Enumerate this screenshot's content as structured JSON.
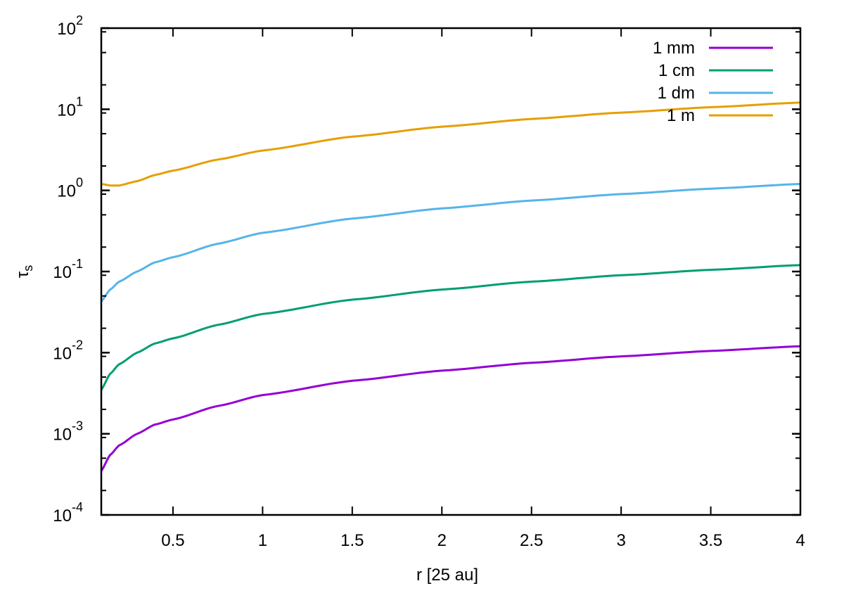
{
  "chart_data": {
    "type": "line",
    "title": "",
    "xlabel": "r [25 au]",
    "ylabel": "τs",
    "ylabel_main": "τ",
    "ylabel_sub": "s",
    "xscale": "linear",
    "yscale": "log",
    "xlim": [
      0.1,
      4
    ],
    "ylim": [
      0.0001,
      100
    ],
    "grid": false,
    "legend_position": "top-right",
    "x_ticks": [
      0.5,
      1,
      1.5,
      2,
      2.5,
      3,
      3.5,
      4
    ],
    "x_tick_labels": [
      "0.5",
      "1",
      "1.5",
      "2",
      "2.5",
      "3",
      "3.5",
      "4"
    ],
    "y_ticks": [
      {
        "base": "10",
        "exp": "2",
        "value": 100
      },
      {
        "base": "10",
        "exp": "1",
        "value": 10
      },
      {
        "base": "10",
        "exp": "0",
        "value": 1
      },
      {
        "base": "10",
        "exp": "-1",
        "value": 0.1
      },
      {
        "base": "10",
        "exp": "-2",
        "value": 0.01
      },
      {
        "base": "10",
        "exp": "-3",
        "value": 0.001
      },
      {
        "base": "10",
        "exp": "-4",
        "value": 0.0001
      }
    ],
    "x": [
      0.1,
      0.15,
      0.2,
      0.3,
      0.4,
      0.5,
      0.75,
      1.0,
      1.5,
      2.0,
      2.5,
      3.0,
      3.5,
      4.0
    ],
    "series": [
      {
        "name": "1 mm",
        "color": "#9400d3",
        "values": [
          0.00035,
          0.00055,
          0.00072,
          0.001,
          0.0013,
          0.0015,
          0.0022,
          0.003,
          0.0045,
          0.006,
          0.0075,
          0.009,
          0.0105,
          0.012
        ]
      },
      {
        "name": "1 cm",
        "color": "#009e73",
        "values": [
          0.0035,
          0.0055,
          0.0072,
          0.01,
          0.013,
          0.015,
          0.022,
          0.03,
          0.045,
          0.06,
          0.075,
          0.09,
          0.105,
          0.12
        ]
      },
      {
        "name": "1 dm",
        "color": "#56b4e9",
        "values": [
          0.043,
          0.06,
          0.075,
          0.1,
          0.13,
          0.15,
          0.22,
          0.3,
          0.45,
          0.6,
          0.75,
          0.9,
          1.05,
          1.2
        ]
      },
      {
        "name": "1 m",
        "color": "#e69f00",
        "values": [
          1.2,
          1.15,
          1.15,
          1.3,
          1.55,
          1.75,
          2.4,
          3.1,
          4.6,
          6.1,
          7.6,
          9.1,
          10.6,
          12.1
        ]
      }
    ]
  }
}
